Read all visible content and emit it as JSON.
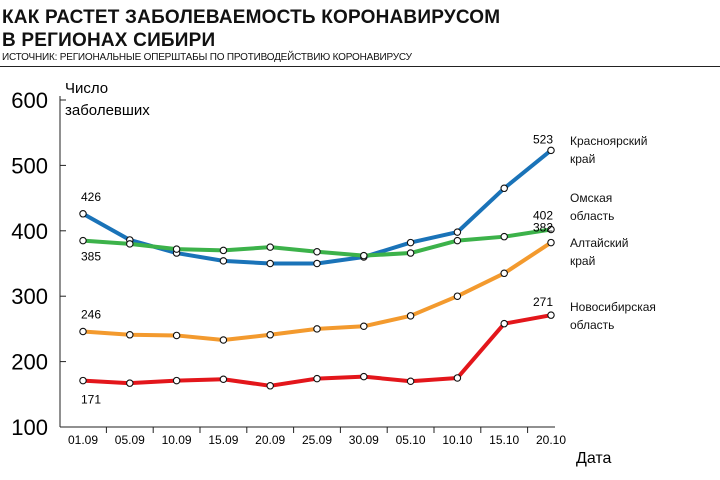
{
  "header": {
    "title_line1": "Как растет заболеваемость коронавирусом",
    "title_line2": "в регионах Сибири",
    "source": "Источник: региональные оперштабы по противодействию коронавирусу"
  },
  "chart_data": {
    "type": "line",
    "ylabel_line1": "Число",
    "ylabel_line2": "заболевших",
    "xlabel": "Дата",
    "ylim": [
      100,
      600
    ],
    "yticks": [
      100,
      200,
      300,
      400,
      500,
      600
    ],
    "categories": [
      "01.09",
      "05.09",
      "10.09",
      "15.09",
      "20.09",
      "25.09",
      "30.09",
      "05.10",
      "10.10",
      "15.10",
      "20.10"
    ],
    "grid": false,
    "legend": "right",
    "series": [
      {
        "name_line1": "Красноярский",
        "name_line2": "край",
        "color": "#1a73b8",
        "values": [
          426,
          386,
          366,
          354,
          350,
          350,
          360,
          382,
          398,
          465,
          523
        ],
        "labels": [
          {
            "index": 0,
            "text": "426"
          },
          {
            "index": 10,
            "text": "523"
          }
        ]
      },
      {
        "name_line1": "Омская",
        "name_line2": "область",
        "color": "#3cb24a",
        "values": [
          385,
          380,
          372,
          370,
          375,
          368,
          362,
          366,
          385,
          391,
          402
        ],
        "labels": [
          {
            "index": 0,
            "text": "385"
          },
          {
            "index": 10,
            "text": "402"
          }
        ]
      },
      {
        "name_line1": "Алтайский",
        "name_line2": "край",
        "color": "#f39a2e",
        "values": [
          246,
          241,
          240,
          233,
          241,
          250,
          254,
          270,
          300,
          335,
          382
        ],
        "labels": [
          {
            "index": 0,
            "text": "246"
          },
          {
            "index": 10,
            "text": "382"
          }
        ]
      },
      {
        "name_line1": "Новосибирская",
        "name_line2": "область",
        "color": "#e3161b",
        "values": [
          171,
          167,
          171,
          173,
          163,
          174,
          177,
          170,
          175,
          258,
          271
        ],
        "labels": [
          {
            "index": 0,
            "text": "171"
          },
          {
            "index": 10,
            "text": "271"
          }
        ]
      }
    ]
  }
}
